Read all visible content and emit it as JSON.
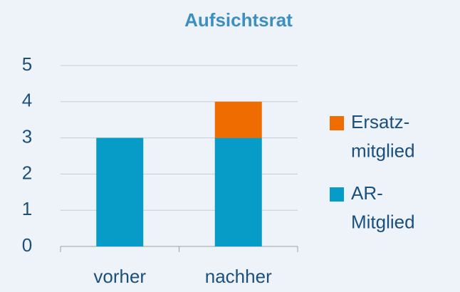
{
  "chart_data": {
    "type": "stacked_bar",
    "title": "Aufsichtsrat",
    "categories": [
      "vorher",
      "nachher"
    ],
    "series": [
      {
        "name": "AR-\nMitglied",
        "color": "#069cc7",
        "values": [
          3,
          3
        ]
      },
      {
        "name": "Ersatz-\nmitglied",
        "color": "#ef6c00",
        "values": [
          0,
          1
        ]
      }
    ],
    "ylim": [
      0,
      5
    ],
    "yticks": [
      0,
      1,
      2,
      3,
      4,
      5
    ],
    "grid": true,
    "legend": "right"
  }
}
